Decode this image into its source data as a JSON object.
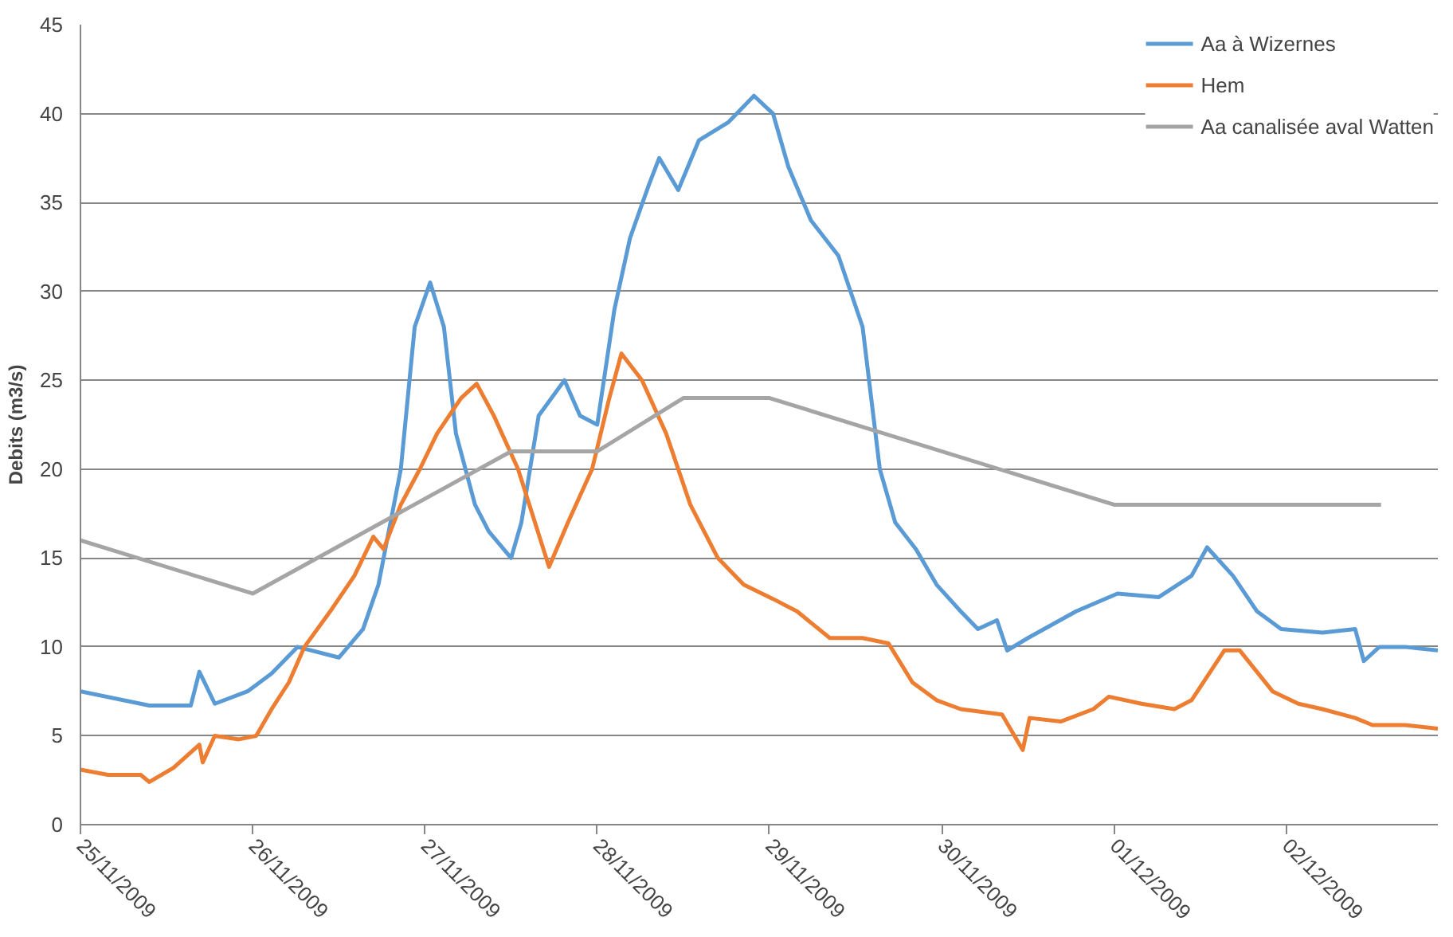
{
  "chart_data": {
    "type": "line",
    "ylabel": "Debits (m3/s)",
    "xlim": [
      "2009-11-25T00:00",
      "2009-12-02T21:07"
    ],
    "ylim": [
      0,
      45
    ],
    "yticks": [
      0,
      5,
      10,
      15,
      20,
      25,
      30,
      35,
      40,
      45
    ],
    "xticks": [
      {
        "value": "2009-11-25",
        "label": "25/11/2009"
      },
      {
        "value": "2009-11-26",
        "label": "26/11/2009"
      },
      {
        "value": "2009-11-27",
        "label": "27/11/2009"
      },
      {
        "value": "2009-11-28",
        "label": "28/11/2009"
      },
      {
        "value": "2009-11-29",
        "label": "29/11/2009"
      },
      {
        "value": "2009-11-30",
        "label": "30/11/2009"
      },
      {
        "value": "2009-12-01",
        "label": "01/12/2009"
      },
      {
        "value": "2009-12-02",
        "label": "02/12/2009"
      }
    ],
    "grid": "y",
    "legend": "top right",
    "marker": "none",
    "line_style": "solid",
    "series": [
      {
        "name": "Aa à Wizernes",
        "color": "#5b9bd5",
        "x": [
          "2009-11-25T00:00",
          "2009-11-25T09:36",
          "2009-11-25T15:22",
          "2009-11-25T16:34",
          "2009-11-25T18:43",
          "2009-11-25T23:17",
          "2009-11-26T02:38",
          "2009-11-26T06:14",
          "2009-11-26T12:00",
          "2009-11-26T15:22",
          "2009-11-26T17:31",
          "2009-11-26T20:38",
          "2009-11-26T22:34",
          "2009-11-27T00:43",
          "2009-11-27T02:38",
          "2009-11-27T04:19",
          "2009-11-27T06:58",
          "2009-11-27T08:53",
          "2009-11-27T12:00",
          "2009-11-27T13:26",
          "2009-11-27T15:50",
          "2009-11-27T19:26",
          "2009-11-27T21:36",
          "2009-11-28T00:00",
          "2009-11-28T02:24",
          "2009-11-28T04:34",
          "2009-11-28T07:12",
          "2009-11-28T08:38",
          "2009-11-28T11:17",
          "2009-11-28T14:10",
          "2009-11-28T18:14",
          "2009-11-28T21:50",
          "2009-11-29T00:29",
          "2009-11-29T02:38",
          "2009-11-29T05:46",
          "2009-11-29T09:36",
          "2009-11-29T12:58",
          "2009-11-29T15:22",
          "2009-11-29T17:31",
          "2009-11-29T20:24",
          "2009-11-29T23:17",
          "2009-11-30T02:38",
          "2009-11-30T05:02",
          "2009-11-30T07:41",
          "2009-11-30T09:07",
          "2009-11-30T12:00",
          "2009-11-30T18:43",
          "2009-12-01T00:29",
          "2009-12-01T06:14",
          "2009-12-01T10:48",
          "2009-12-01T12:58",
          "2009-12-01T16:34",
          "2009-12-01T19:55",
          "2009-12-01T23:17",
          "2009-12-02T05:02",
          "2009-12-02T09:36",
          "2009-12-02T10:48",
          "2009-12-02T12:58",
          "2009-12-02T16:34",
          "2009-12-02T21:07"
        ],
        "values": [
          7.5,
          6.7,
          6.7,
          8.6,
          6.8,
          7.5,
          8.5,
          10,
          9.4,
          11,
          13.5,
          20,
          28,
          30.5,
          28,
          22,
          18,
          16.5,
          15,
          17,
          23,
          25,
          23,
          22.5,
          29,
          33,
          36,
          37.5,
          35.7,
          38.5,
          39.5,
          41,
          40,
          37,
          34,
          32,
          28,
          20,
          17,
          15.5,
          13.5,
          12,
          11,
          11.5,
          9.8,
          10.5,
          12,
          13,
          12.8,
          14,
          15.6,
          14,
          12,
          11,
          10.8,
          11,
          9.2,
          10,
          10,
          9.8
        ]
      },
      {
        "name": "Hem",
        "color": "#ed7d31",
        "x": [
          "2009-11-25T00:00",
          "2009-11-25T03:50",
          "2009-11-25T08:24",
          "2009-11-25T09:36",
          "2009-11-25T12:58",
          "2009-11-25T16:34",
          "2009-11-25T17:02",
          "2009-11-25T18:43",
          "2009-11-25T22:05",
          "2009-11-26T00:29",
          "2009-11-26T02:38",
          "2009-11-26T05:02",
          "2009-11-26T07:12",
          "2009-11-26T10:48",
          "2009-11-26T14:10",
          "2009-11-26T16:48",
          "2009-11-26T18:14",
          "2009-11-26T20:38",
          "2009-11-26T23:17",
          "2009-11-27T01:41",
          "2009-11-27T05:02",
          "2009-11-27T07:12",
          "2009-11-27T09:36",
          "2009-11-27T12:58",
          "2009-11-27T17:17",
          "2009-11-27T19:55",
          "2009-11-27T23:17",
          "2009-11-28T01:41",
          "2009-11-28T03:22",
          "2009-11-28T06:14",
          "2009-11-28T09:36",
          "2009-11-28T12:58",
          "2009-11-28T16:48",
          "2009-11-28T20:24",
          "2009-11-29T00:29",
          "2009-11-29T03:50",
          "2009-11-29T08:24",
          "2009-11-29T12:58",
          "2009-11-29T16:34",
          "2009-11-29T19:55",
          "2009-11-29T23:17",
          "2009-11-30T02:38",
          "2009-11-30T08:24",
          "2009-11-30T11:17",
          "2009-11-30T12:14",
          "2009-11-30T16:34",
          "2009-11-30T21:07",
          "2009-11-30T23:17",
          "2009-12-01T03:50",
          "2009-12-01T08:24",
          "2009-12-01T10:48",
          "2009-12-01T15:22",
          "2009-12-01T17:31",
          "2009-12-01T22:05",
          "2009-12-02T01:41",
          "2009-12-02T05:02",
          "2009-12-02T09:36",
          "2009-12-02T12:00",
          "2009-12-02T16:34",
          "2009-12-02T21:07"
        ],
        "values": [
          3.1,
          2.8,
          2.8,
          2.4,
          3.2,
          4.5,
          3.5,
          5,
          4.8,
          5,
          6.5,
          8,
          10,
          12,
          14,
          16.2,
          15.5,
          18,
          20,
          22,
          24,
          24.8,
          23,
          20,
          14.5,
          17,
          20,
          24,
          26.5,
          25,
          22,
          18,
          15,
          13.5,
          12.7,
          12,
          10.5,
          10.5,
          10.2,
          8,
          7,
          6.5,
          6.2,
          4.2,
          6,
          5.8,
          6.5,
          7.2,
          6.8,
          6.5,
          7,
          9.8,
          9.8,
          7.5,
          6.8,
          6.5,
          6,
          5.6,
          5.6,
          5.4
        ]
      },
      {
        "name": "Aa canalisée aval Watten",
        "color": "#a5a5a5",
        "x": [
          "2009-11-25T00:00",
          "2009-11-26T00:00",
          "2009-11-27T12:00",
          "2009-11-28T00:00",
          "2009-11-28T12:00",
          "2009-11-29T00:00",
          "2009-12-01T00:00",
          "2009-12-02T13:12"
        ],
        "values": [
          16,
          13,
          21,
          21,
          24,
          24,
          18,
          18
        ]
      }
    ]
  }
}
